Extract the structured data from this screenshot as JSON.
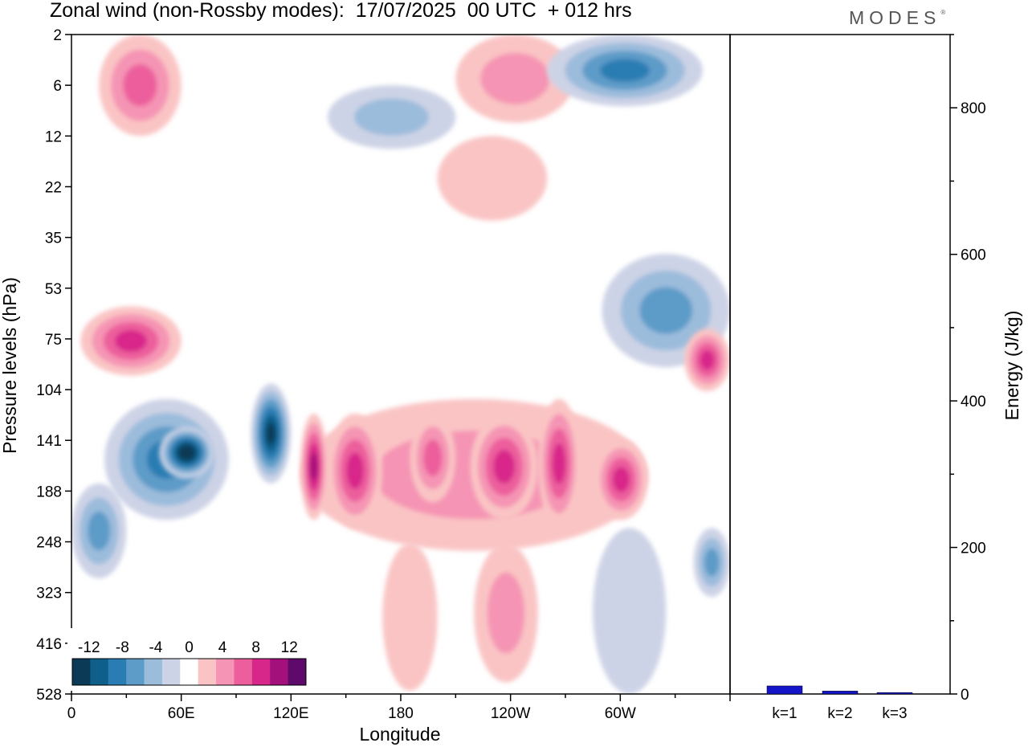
{
  "header": {
    "title": "Zonal wind (non-Rossby modes):  17/07/2025  00 UTC  + 012 hrs",
    "brand": "MODES",
    "brand_mark": "®"
  },
  "chart_data": [
    {
      "type": "heatmap",
      "title": "Zonal wind (non-Rossby modes):  17/07/2025  00 UTC  + 012 hrs",
      "xlabel": "Longitude",
      "ylabel": "Pressure levels (hPa)",
      "x_ticks": [
        "0",
        "60E",
        "120E",
        "180",
        "120W",
        "60W"
      ],
      "x_tick_values": [
        0,
        60,
        120,
        180,
        240,
        300
      ],
      "xlim": [
        0,
        360
      ],
      "y_ticks": [
        "2",
        "6",
        "12",
        "22",
        "35",
        "53",
        "75",
        "104",
        "141",
        "188",
        "248",
        "323",
        "416",
        "528"
      ],
      "colorbar": {
        "labels": [
          "-12",
          "-8",
          "-4",
          "0",
          "4",
          "8",
          "12"
        ],
        "label_values": [
          -12,
          -8,
          -4,
          0,
          4,
          8,
          12
        ],
        "levels": [
          -14,
          -12,
          -10,
          -8,
          -6,
          -4,
          -2,
          2,
          4,
          6,
          8,
          10,
          12,
          14
        ],
        "colors": [
          "#0b3a57",
          "#0f5f8a",
          "#2a7db3",
          "#5d9bc8",
          "#9cbcdc",
          "#cdd3e6",
          "#ffffff",
          "#fac4c4",
          "#f594b4",
          "#ec5f9c",
          "#d8278a",
          "#a3107b",
          "#5e0a6b"
        ]
      },
      "regions": [
        {
          "name": "tropopause-jet-negative-60E",
          "x": [
            48,
            78
          ],
          "level": [
            130,
            175
          ],
          "value": -14
        },
        {
          "name": "negative-band-30-85E",
          "x": [
            18,
            86
          ],
          "level": [
            110,
            220
          ],
          "value": -8
        },
        {
          "name": "negative-tail-0-30E",
          "x": [
            0,
            30
          ],
          "level": [
            180,
            300
          ],
          "value": -6
        },
        {
          "name": "negative-core-110E",
          "x": [
            98,
            120
          ],
          "level": [
            100,
            180
          ],
          "value": -12
        },
        {
          "name": "positive-core-135E",
          "x": [
            125,
            140
          ],
          "level": [
            120,
            220
          ],
          "value": 10
        },
        {
          "name": "positive-band-125-300E",
          "x": [
            125,
            315
          ],
          "level": [
            110,
            260
          ],
          "value": 5
        },
        {
          "name": "positive-core-155E",
          "x": [
            140,
            170
          ],
          "level": [
            120,
            230
          ],
          "value": 8
        },
        {
          "name": "positive-core-200E",
          "x": [
            185,
            210
          ],
          "level": [
            120,
            200
          ],
          "value": 7
        },
        {
          "name": "positive-core-235E",
          "x": [
            218,
            255
          ],
          "level": [
            120,
            220
          ],
          "value": 9
        },
        {
          "name": "positive-core-260E",
          "x": [
            255,
            278
          ],
          "level": [
            110,
            230
          ],
          "value": 8
        },
        {
          "name": "positive-core-295E",
          "x": [
            286,
            315
          ],
          "level": [
            140,
            220
          ],
          "value": 9
        },
        {
          "name": "positive-deep-tail-180",
          "x": [
            170,
            200
          ],
          "level": [
            250,
            520
          ],
          "value": 3
        },
        {
          "name": "positive-deep-tail-235E",
          "x": [
            220,
            255
          ],
          "level": [
            250,
            500
          ],
          "value": 4
        },
        {
          "name": "negative-lower-300E",
          "x": [
            285,
            325
          ],
          "level": [
            230,
            528
          ],
          "value": -3
        },
        {
          "name": "negative-lower-350E",
          "x": [
            340,
            360
          ],
          "level": [
            230,
            330
          ],
          "value": -6
        },
        {
          "name": "positive-75hPa-30E",
          "x": [
            5,
            60
          ],
          "level": [
            60,
            95
          ],
          "value": 8
        },
        {
          "name": "positive-75hPa-350E",
          "x": [
            335,
            360
          ],
          "level": [
            70,
            105
          ],
          "value": 9
        },
        {
          "name": "negative-60hPa-300E",
          "x": [
            290,
            360
          ],
          "level": [
            40,
            90
          ],
          "value": -6
        },
        {
          "name": "positive-upper-30E",
          "x": [
            15,
            60
          ],
          "level": [
            2,
            12
          ],
          "value": 6
        },
        {
          "name": "negative-upper-310E",
          "x": [
            260,
            345
          ],
          "level": [
            2,
            8
          ],
          "value": -9
        },
        {
          "name": "positive-upper-240E",
          "x": [
            210,
            275
          ],
          "level": [
            2,
            10
          ],
          "value": 4
        },
        {
          "name": "negative-upper-180",
          "x": [
            140,
            210
          ],
          "level": [
            6,
            14
          ],
          "value": -5
        },
        {
          "name": "positive-mid-20hPa-200E",
          "x": [
            200,
            260
          ],
          "level": [
            12,
            30
          ],
          "value": 3
        }
      ]
    },
    {
      "type": "bar",
      "ylabel": "Energy (J/kg)",
      "categories": [
        "k=1",
        "k=2",
        "k=3"
      ],
      "values": [
        11,
        4,
        2
      ],
      "ylim": [
        0,
        900
      ],
      "y_ticks": [
        0,
        200,
        400,
        600,
        800
      ],
      "bar_colors": [
        "#1414c8",
        "#1414c8",
        "#1414c8"
      ]
    }
  ]
}
